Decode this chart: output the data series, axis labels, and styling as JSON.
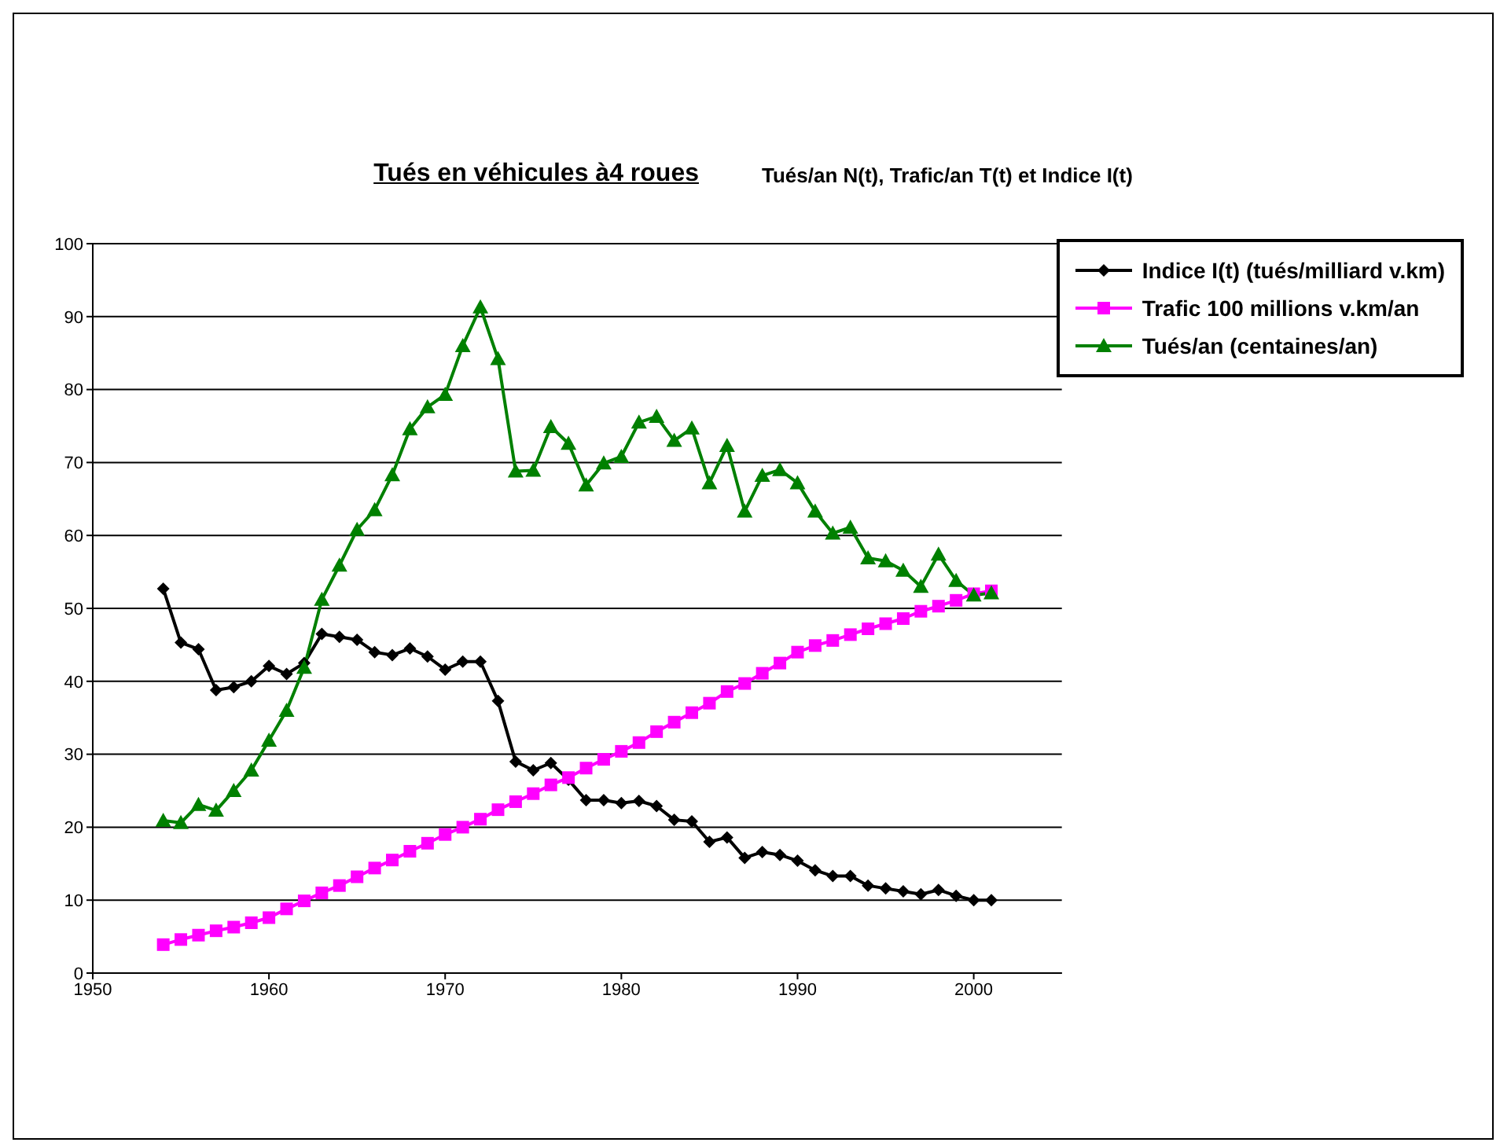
{
  "chart_data": {
    "type": "line",
    "title": "Tués en véhicules à4 roues",
    "subtitle": "Tués/an N(t),  Trafic/an T(t) et Indice I(t)",
    "x": [
      1954,
      1955,
      1956,
      1957,
      1958,
      1959,
      1960,
      1961,
      1962,
      1963,
      1964,
      1965,
      1966,
      1967,
      1968,
      1969,
      1970,
      1971,
      1972,
      1973,
      1974,
      1975,
      1976,
      1977,
      1978,
      1979,
      1980,
      1981,
      1982,
      1983,
      1984,
      1985,
      1986,
      1987,
      1988,
      1989,
      1990,
      1991,
      1992,
      1993,
      1994,
      1995,
      1996,
      1997,
      1998,
      1999,
      2000,
      2001
    ],
    "series": [
      {
        "name": "Indice I(t)  (tués/milliard v.km)",
        "color": "#000000",
        "marker": "diamond",
        "values": [
          52.7,
          45.3,
          44.4,
          38.8,
          39.2,
          40,
          42.1,
          41,
          42.5,
          46.5,
          46.1,
          45.7,
          44,
          43.6,
          44.5,
          43.4,
          41.6,
          42.7,
          42.7,
          37.3,
          29,
          27.8,
          28.8,
          26.5,
          23.7,
          23.7,
          23.3,
          23.6,
          22.9,
          21,
          20.8,
          18,
          18.6,
          15.8,
          16.6,
          16.2,
          15.4,
          14.1,
          13.3,
          13.3,
          12,
          11.6,
          11.2,
          10.8,
          11.4,
          10.6,
          10,
          10
        ]
      },
      {
        "name": "Trafic  100 millions v.km/an",
        "color": "#ff00ff",
        "marker": "square",
        "values": [
          3.9,
          4.6,
          5.2,
          5.8,
          6.3,
          6.9,
          7.6,
          8.8,
          9.9,
          11,
          12,
          13.2,
          14.4,
          15.5,
          16.7,
          17.8,
          19,
          20,
          21.1,
          22.4,
          23.5,
          24.6,
          25.8,
          26.8,
          28.1,
          29.3,
          30.4,
          31.6,
          33.1,
          34.4,
          35.7,
          37,
          38.6,
          39.7,
          41.1,
          42.5,
          44,
          44.9,
          45.6,
          46.4,
          47.2,
          47.9,
          48.6,
          49.6,
          50.3,
          51.1,
          52,
          52.4
        ]
      },
      {
        "name": "Tués/an (centaines/an)",
        "color": "#008000",
        "marker": "triangle",
        "values": [
          20.9,
          20.6,
          23.1,
          22.3,
          25,
          27.8,
          31.9,
          36,
          41.9,
          51.2,
          55.9,
          60.8,
          63.5,
          68.3,
          74.6,
          77.6,
          79.3,
          86,
          91.3,
          84.2,
          68.8,
          68.9,
          74.9,
          72.6,
          66.9,
          69.9,
          70.8,
          75.5,
          76.3,
          73,
          74.7,
          67.2,
          72.3,
          63.3,
          68.2,
          69,
          67.2,
          63.3,
          60.3,
          61.1,
          56.9,
          56.5,
          55.2,
          53,
          57.4,
          53.8,
          51.8,
          52.1
        ]
      }
    ],
    "xlim": [
      1950,
      2005
    ],
    "xticks": [
      1950,
      1960,
      1970,
      1980,
      1990,
      2000
    ],
    "ylim": [
      0,
      100
    ],
    "yticks": [
      0,
      10,
      20,
      30,
      40,
      50,
      60,
      70,
      80,
      90,
      100
    ],
    "grid": "y",
    "legend": "top right"
  }
}
